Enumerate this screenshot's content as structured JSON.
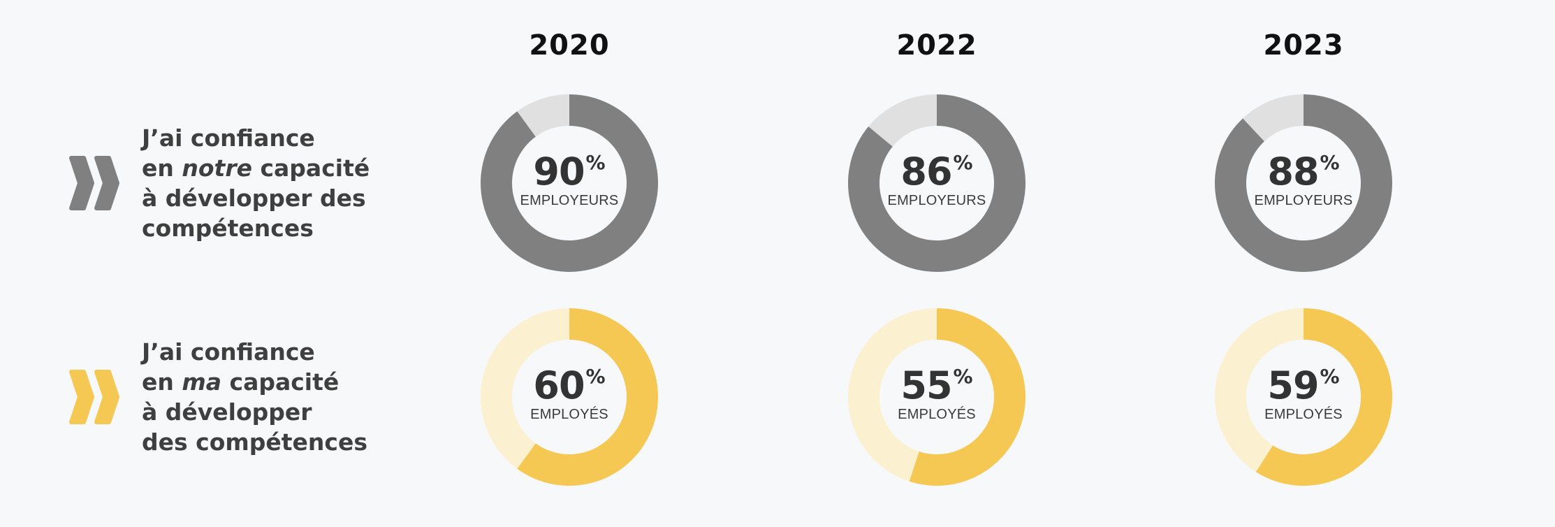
{
  "chart_data": {
    "type": "donut",
    "years": [
      "2020",
      "2022",
      "2023"
    ],
    "rows": [
      {
        "label_lines": [
          {
            "segments": [
              {
                "text": "J’ai confiance",
                "italic": false
              }
            ]
          },
          {
            "segments": [
              {
                "text": "en ",
                "italic": false
              },
              {
                "text": "notre",
                "italic": true
              },
              {
                "text": " capacité",
                "italic": false
              }
            ]
          },
          {
            "segments": [
              {
                "text": "à développer des",
                "italic": false
              }
            ]
          },
          {
            "segments": [
              {
                "text": "compétences",
                "italic": false
              }
            ]
          }
        ],
        "group": "EMPLOYEURS",
        "values": [
          90,
          86,
          88
        ],
        "value_display": [
          "90",
          "86",
          "88"
        ],
        "unit": "%",
        "color": "#808080",
        "track_color": "#e0e0e0"
      },
      {
        "label_lines": [
          {
            "segments": [
              {
                "text": "J’ai confiance",
                "italic": false
              }
            ]
          },
          {
            "segments": [
              {
                "text": "en ",
                "italic": false
              },
              {
                "text": "ma",
                "italic": true
              },
              {
                "text": " capacité",
                "italic": false
              }
            ]
          },
          {
            "segments": [
              {
                "text": "à développer",
                "italic": false
              }
            ]
          },
          {
            "segments": [
              {
                "text": "des compétences",
                "italic": false
              }
            ]
          }
        ],
        "group": "EMPLOYÉS",
        "values": [
          60,
          55,
          59
        ],
        "value_display": [
          "60",
          "55",
          "59"
        ],
        "unit": "%",
        "color": "#f5c853",
        "track_color": "#fbf0cf"
      }
    ]
  },
  "icons": {
    "row_marker": "double-chevron-right-icon"
  }
}
